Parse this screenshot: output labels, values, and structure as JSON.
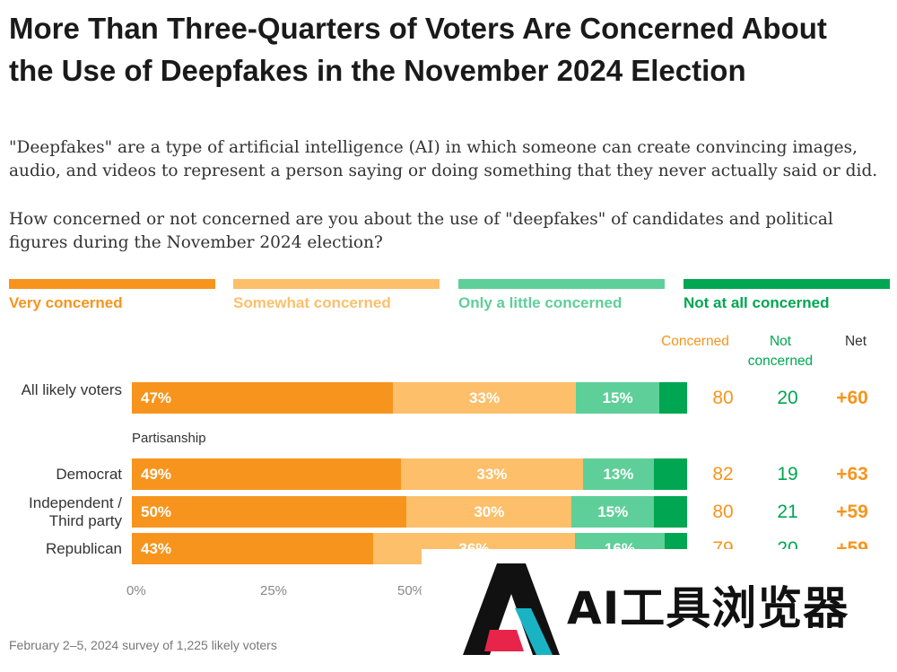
{
  "title": "More Than Three-Quarters of Voters Are Concerned About the Use of Deepfakes in the November 2024 Election",
  "subtitle": "\"Deepfakes\" are a type of artificial intelligence (AI) in which someone can create convincing images, audio, and videos to represent a person saying or doing something that they never actually said or did.",
  "question": "How concerned or not concerned are you about the use of \"deepfakes\" of candidates and political figures during the November 2024 election?",
  "colors": {
    "very": "#F7941D",
    "somewhat": "#FDBF6A",
    "little": "#5ECF98",
    "notatall": "#00A651",
    "concerned_text": "#F7941D",
    "not_text": "#00A651",
    "net_text": "#F7941D"
  },
  "legend": [
    "Very concerned",
    "Somewhat concerned",
    "Only a little concerned",
    "Not at all concerned"
  ],
  "columns": {
    "concerned": "Concerned",
    "not_concerned": "Not concerned",
    "net": "Net"
  },
  "group_label": "Partisanship",
  "footnote": "February 2–5, 2024 survey of 1,225 likely voters",
  "watermark": {
    "text": "AI工具浏览器"
  },
  "chart_data": {
    "type": "bar",
    "orientation": "horizontal",
    "stacked": true,
    "categories": [
      "All likely voters",
      "Democrat",
      "Independent / Third party",
      "Republican"
    ],
    "series": [
      {
        "name": "Very concerned",
        "values": [
          47,
          49,
          50,
          43
        ],
        "labels": [
          "47%",
          "49%",
          "50%",
          "43%"
        ]
      },
      {
        "name": "Somewhat concerned",
        "values": [
          33,
          33,
          30,
          36
        ],
        "labels": [
          "33%",
          "33%",
          "30%",
          "36%"
        ]
      },
      {
        "name": "Only a little concerned",
        "values": [
          15,
          13,
          15,
          16
        ],
        "labels": [
          "15%",
          "13%",
          "15%",
          "16%"
        ]
      },
      {
        "name": "Not at all concerned",
        "values": [
          5,
          6,
          6,
          4
        ],
        "labels": [
          "",
          "",
          "",
          ""
        ]
      }
    ],
    "concerned": [
      "80",
      "82",
      "80",
      "79"
    ],
    "not_concerned": [
      "20",
      "19",
      "21",
      "20"
    ],
    "net": [
      "+60",
      "+63",
      "+59",
      "+59"
    ],
    "xlim": [
      0,
      100
    ],
    "xticks": [
      "0%",
      "25%",
      "50%"
    ],
    "legend_position": "top"
  }
}
